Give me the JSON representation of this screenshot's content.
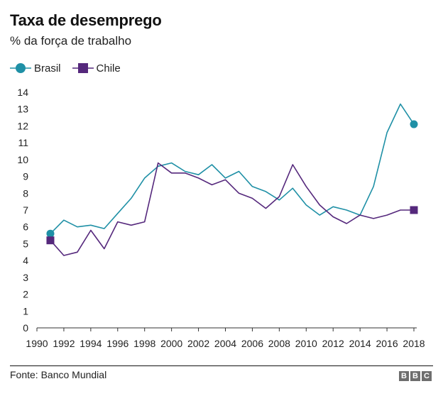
{
  "title": "Taxa de desemprego",
  "subtitle": "% da força de trabalho",
  "source": "Fonte: Banco Mundial",
  "logo": [
    "B",
    "B",
    "C"
  ],
  "colors": {
    "brasil": "#1f90a6",
    "chile": "#55287c",
    "axis": "#333333",
    "grid": "#cccccc"
  },
  "chart_data": {
    "type": "line",
    "title": "Taxa de desemprego",
    "ylabel": "% da força de trabalho",
    "xlabel": "",
    "xlim": [
      1990,
      2018
    ],
    "ylim": [
      0,
      14
    ],
    "x_ticks": [
      1990,
      1992,
      1994,
      1996,
      1998,
      2000,
      2002,
      2004,
      2006,
      2008,
      2010,
      2012,
      2014,
      2016,
      2018
    ],
    "y_ticks": [
      0,
      1,
      2,
      3,
      4,
      5,
      6,
      7,
      8,
      9,
      10,
      11,
      12,
      13,
      14
    ],
    "legend": [
      "Brasil",
      "Chile"
    ],
    "series": [
      {
        "name": "Brasil",
        "marker": "circle",
        "x": [
          1991,
          1992,
          1993,
          1994,
          1995,
          1996,
          1997,
          1998,
          1999,
          2000,
          2001,
          2002,
          2003,
          2004,
          2005,
          2006,
          2007,
          2008,
          2009,
          2010,
          2011,
          2012,
          2013,
          2014,
          2015,
          2016,
          2017,
          2018
        ],
        "values": [
          5.6,
          6.4,
          6.0,
          6.1,
          5.9,
          6.8,
          7.7,
          8.9,
          9.6,
          9.8,
          9.3,
          9.1,
          9.7,
          8.9,
          9.3,
          8.4,
          8.1,
          7.6,
          8.3,
          7.3,
          6.7,
          7.2,
          7.0,
          6.7,
          8.4,
          11.6,
          13.3,
          12.1
        ]
      },
      {
        "name": "Chile",
        "marker": "square",
        "x": [
          1991,
          1992,
          1993,
          1994,
          1995,
          1996,
          1997,
          1998,
          1999,
          2000,
          2001,
          2002,
          2003,
          2004,
          2005,
          2006,
          2007,
          2008,
          2009,
          2010,
          2011,
          2012,
          2013,
          2014,
          2015,
          2016,
          2017,
          2018
        ],
        "values": [
          5.2,
          4.3,
          4.5,
          5.8,
          4.7,
          6.3,
          6.1,
          6.3,
          9.8,
          9.2,
          9.2,
          8.9,
          8.5,
          8.8,
          8.0,
          7.7,
          7.1,
          7.8,
          9.7,
          8.4,
          7.3,
          6.6,
          6.2,
          6.7,
          6.5,
          6.7,
          7.0,
          7.0
        ]
      }
    ]
  }
}
